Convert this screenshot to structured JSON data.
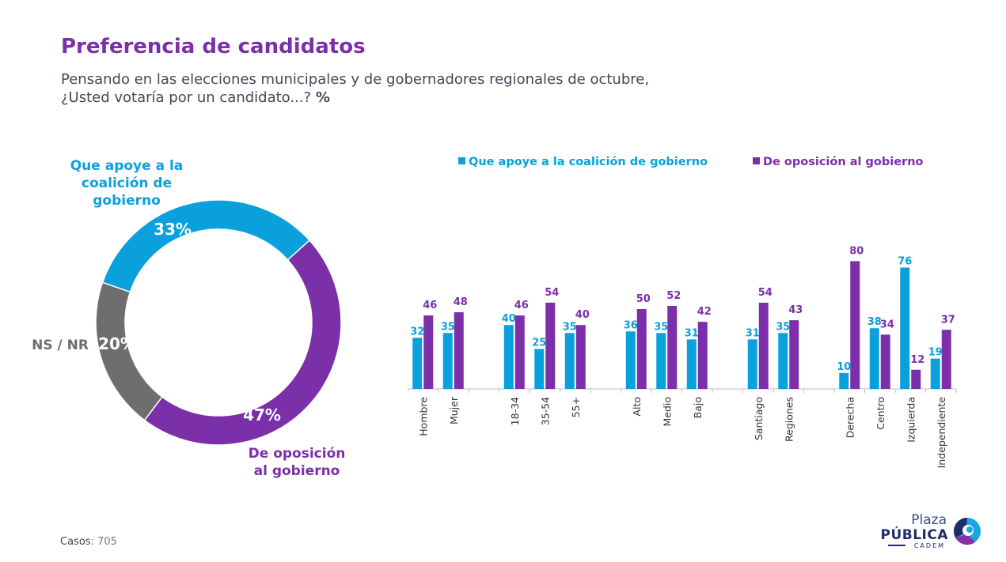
{
  "header": {
    "title": "Preferencia de candidatos",
    "subtitle_line1": "Pensando en las elecciones municipales y de gobernadores regionales de octubre,",
    "subtitle_line2": "¿Usted votaría por un candidato...?",
    "subtitle_unit": "%"
  },
  "footer": {
    "casos_label": "Casos",
    "casos_value": ": 705"
  },
  "logo": {
    "plaza": "Plaza",
    "publica": "PÚBLICA",
    "cadem": "CADEM"
  },
  "colors": {
    "gobierno": "#0aa0dc",
    "oposicion": "#7b2fa8",
    "nsnr": "#6e6e6e",
    "title": "#7b2fa8"
  },
  "chart_data": [
    {
      "type": "pie",
      "variant": "donut",
      "slices": [
        {
          "label_lines": [
            "Que apoye a la",
            "coalición de",
            "gobierno"
          ],
          "value": 33,
          "value_label": "33%",
          "color": "#0aa0dc"
        },
        {
          "label_lines": [
            "De oposición",
            "al gobierno"
          ],
          "value": 47,
          "value_label": "47%",
          "color": "#7b2fa8"
        },
        {
          "label_lines": [
            "NS / NR"
          ],
          "value": 20,
          "value_label": "20%",
          "color": "#6e6e6e"
        }
      ]
    },
    {
      "type": "bar",
      "legend_position": "top",
      "series": [
        {
          "name": "Que apoye a la coalición de gobierno",
          "color": "#0aa0dc",
          "values": [
            32,
            35,
            40,
            25,
            35,
            36,
            35,
            31,
            31,
            35,
            10,
            38,
            76,
            19
          ]
        },
        {
          "name": "De oposición al gobierno",
          "color": "#7b2fa8",
          "values": [
            46,
            48,
            46,
            54,
            40,
            50,
            52,
            42,
            54,
            43,
            80,
            34,
            12,
            37
          ]
        }
      ],
      "categories": [
        "Hombre",
        "Mujer",
        "18-34",
        "35-54",
        "55+",
        "Alto",
        "Medio",
        "Bajo",
        "Santiago",
        "Regiones",
        "Derecha",
        "Centro",
        "Izquierda",
        "Independiente"
      ],
      "groups": [
        2,
        3,
        3,
        2,
        4
      ],
      "ylim": [
        0,
        100
      ]
    }
  ]
}
